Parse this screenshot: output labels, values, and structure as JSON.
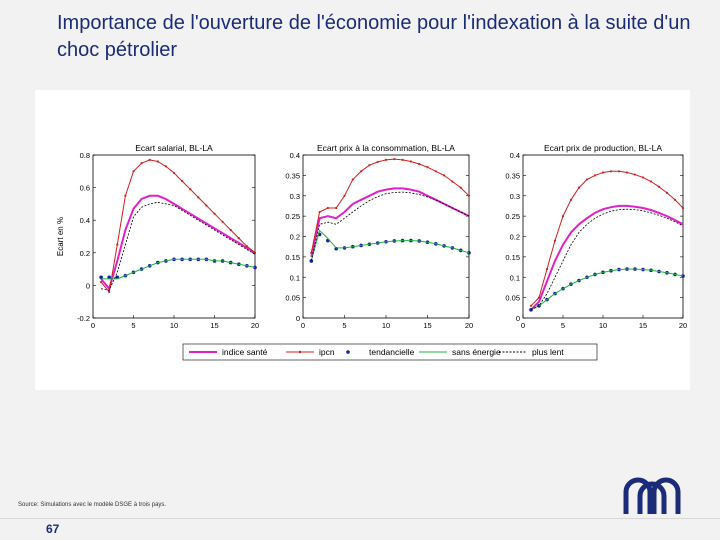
{
  "slide": {
    "title": "Importance de l'ouverture de l'économie pour l'indexation à la suite d'un choc pétrolier",
    "source": "Source: Simulations avec le modèle DSGE à trois pays.",
    "page_number": "67"
  },
  "colors": {
    "indice_sante": "#e020c8",
    "ipcn": "#d02020",
    "tendancielle": "#1020a0",
    "sans_energie": "#20b040",
    "plus_lent": "#000000"
  },
  "chart_data": [
    {
      "type": "line",
      "title": "Ecart salarial, BL-LA",
      "ylabel": "Ecart en %",
      "xlabel": "",
      "xlim": [
        0,
        20
      ],
      "ylim": [
        -0.2,
        0.8
      ],
      "xticks": [
        "0",
        "5",
        "10",
        "15",
        "20"
      ],
      "yticks": [
        "-0.2",
        "0",
        "0.2",
        "0.4",
        "0.6",
        "0.8"
      ],
      "yticks_values": [
        -0.2,
        0,
        0.2,
        0.4,
        0.6,
        0.8
      ],
      "x": [
        1,
        2,
        3,
        4,
        5,
        6,
        7,
        8,
        9,
        10,
        11,
        12,
        13,
        14,
        15,
        16,
        17,
        18,
        19,
        20
      ],
      "series": [
        {
          "name": "indice santé",
          "key": "indice_sante",
          "values": [
            0.04,
            -0.02,
            0.15,
            0.34,
            0.47,
            0.53,
            0.55,
            0.55,
            0.53,
            0.5,
            0.47,
            0.44,
            0.41,
            0.38,
            0.35,
            0.32,
            0.29,
            0.26,
            0.23,
            0.2
          ]
        },
        {
          "name": "ipcn",
          "key": "ipcn",
          "values": [
            0.02,
            -0.04,
            0.25,
            0.55,
            0.7,
            0.75,
            0.77,
            0.76,
            0.73,
            0.69,
            0.64,
            0.59,
            0.54,
            0.49,
            0.44,
            0.39,
            0.34,
            0.29,
            0.24,
            0.2
          ]
        },
        {
          "name": "tendancielle",
          "key": "tendancielle",
          "values": [
            0.05,
            0.05,
            0.05,
            0.06,
            0.08,
            0.1,
            0.12,
            0.14,
            0.15,
            0.16,
            0.16,
            0.16,
            0.16,
            0.16,
            0.15,
            0.15,
            0.14,
            0.13,
            0.12,
            0.11
          ]
        },
        {
          "name": "sans énergie",
          "key": "sans_energie",
          "values": [
            0.04,
            0.04,
            0.04,
            0.06,
            0.08,
            0.1,
            0.12,
            0.14,
            0.15,
            0.16,
            0.16,
            0.16,
            0.16,
            0.16,
            0.15,
            0.15,
            0.14,
            0.13,
            0.12,
            0.11
          ]
        },
        {
          "name": "plus lent",
          "key": "plus_lent",
          "values": [
            -0.02,
            -0.03,
            0.08,
            0.25,
            0.42,
            0.48,
            0.5,
            0.51,
            0.5,
            0.49,
            0.46,
            0.43,
            0.4,
            0.37,
            0.34,
            0.31,
            0.28,
            0.25,
            0.22,
            0.19
          ]
        }
      ]
    },
    {
      "type": "line",
      "title": "Ecart prix à la consommation, BL-LA",
      "ylabel": "",
      "xlabel": "",
      "xlim": [
        0,
        20
      ],
      "ylim": [
        0,
        0.4
      ],
      "xticks": [
        "0",
        "5",
        "10",
        "15",
        "20"
      ],
      "yticks": [
        "0",
        "0.05",
        "0.1",
        "0.15",
        "0.2",
        "0.25",
        "0.3",
        "0.35",
        "0.4"
      ],
      "yticks_values": [
        0,
        0.05,
        0.1,
        0.15,
        0.2,
        0.25,
        0.3,
        0.35,
        0.4
      ],
      "x": [
        1,
        2,
        3,
        4,
        5,
        6,
        7,
        8,
        9,
        10,
        11,
        12,
        13,
        14,
        15,
        16,
        17,
        18,
        19,
        20
      ],
      "series": [
        {
          "name": "indice santé",
          "key": "indice_sante",
          "values": [
            0.15,
            0.245,
            0.25,
            0.245,
            0.26,
            0.28,
            0.29,
            0.3,
            0.31,
            0.315,
            0.318,
            0.318,
            0.315,
            0.31,
            0.3,
            0.29,
            0.28,
            0.27,
            0.26,
            0.25
          ]
        },
        {
          "name": "ipcn",
          "key": "ipcn",
          "values": [
            0.16,
            0.26,
            0.27,
            0.27,
            0.3,
            0.34,
            0.36,
            0.375,
            0.383,
            0.388,
            0.39,
            0.388,
            0.384,
            0.378,
            0.37,
            0.36,
            0.35,
            0.335,
            0.32,
            0.3
          ]
        },
        {
          "name": "tendancielle",
          "key": "tendancielle",
          "values": [
            0.14,
            0.205,
            0.19,
            0.17,
            0.172,
            0.175,
            0.178,
            0.181,
            0.184,
            0.187,
            0.189,
            0.19,
            0.19,
            0.189,
            0.186,
            0.182,
            0.177,
            0.172,
            0.166,
            0.16
          ]
        },
        {
          "name": "sans énergie",
          "key": "sans_energie",
          "values": [
            0.14,
            0.215,
            0.195,
            0.172,
            0.172,
            0.175,
            0.178,
            0.181,
            0.184,
            0.187,
            0.189,
            0.19,
            0.19,
            0.189,
            0.186,
            0.182,
            0.177,
            0.172,
            0.166,
            0.16
          ]
        },
        {
          "name": "plus lent",
          "key": "plus_lent",
          "values": [
            0.14,
            0.23,
            0.235,
            0.23,
            0.245,
            0.26,
            0.275,
            0.288,
            0.298,
            0.305,
            0.308,
            0.309,
            0.307,
            0.303,
            0.297,
            0.29,
            0.28,
            0.27,
            0.26,
            0.25
          ]
        }
      ]
    },
    {
      "type": "line",
      "title": "Ecart prix de production, BL-LA",
      "ylabel": "",
      "xlabel": "",
      "xlim": [
        0,
        20
      ],
      "ylim": [
        0,
        0.4
      ],
      "xticks": [
        "0",
        "5",
        "10",
        "15",
        "20"
      ],
      "yticks": [
        "0",
        "0.05",
        "0.1",
        "0.15",
        "0.2",
        "0.25",
        "0.3",
        "0.35",
        "0.4"
      ],
      "yticks_values": [
        0,
        0.05,
        0.1,
        0.15,
        0.2,
        0.25,
        0.3,
        0.35,
        0.4
      ],
      "x": [
        1,
        2,
        3,
        4,
        5,
        6,
        7,
        8,
        9,
        10,
        11,
        12,
        13,
        14,
        15,
        16,
        17,
        18,
        19,
        20
      ],
      "series": [
        {
          "name": "indice santé",
          "key": "indice_sante",
          "values": [
            0.02,
            0.04,
            0.09,
            0.14,
            0.18,
            0.21,
            0.23,
            0.245,
            0.258,
            0.267,
            0.272,
            0.275,
            0.275,
            0.273,
            0.27,
            0.265,
            0.258,
            0.25,
            0.24,
            0.23
          ]
        },
        {
          "name": "ipcn",
          "key": "ipcn",
          "values": [
            0.03,
            0.05,
            0.12,
            0.19,
            0.25,
            0.29,
            0.32,
            0.34,
            0.35,
            0.357,
            0.36,
            0.36,
            0.357,
            0.352,
            0.345,
            0.335,
            0.322,
            0.307,
            0.29,
            0.27
          ]
        },
        {
          "name": "tendancielle",
          "key": "tendancielle",
          "values": [
            0.02,
            0.03,
            0.045,
            0.06,
            0.072,
            0.083,
            0.092,
            0.1,
            0.107,
            0.112,
            0.116,
            0.119,
            0.12,
            0.12,
            0.119,
            0.117,
            0.114,
            0.111,
            0.107,
            0.103
          ]
        },
        {
          "name": "sans énergie",
          "key": "sans_energie",
          "values": [
            0.02,
            0.03,
            0.045,
            0.06,
            0.072,
            0.083,
            0.092,
            0.1,
            0.107,
            0.112,
            0.116,
            0.119,
            0.12,
            0.12,
            0.119,
            0.117,
            0.114,
            0.111,
            0.107,
            0.103
          ]
        },
        {
          "name": "plus lent",
          "key": "plus_lent",
          "values": [
            0.02,
            0.03,
            0.06,
            0.1,
            0.14,
            0.18,
            0.21,
            0.23,
            0.245,
            0.255,
            0.262,
            0.266,
            0.267,
            0.266,
            0.263,
            0.258,
            0.252,
            0.245,
            0.236,
            0.226
          ]
        }
      ]
    }
  ],
  "legend": [
    {
      "label": "indice santé",
      "key": "indice_sante"
    },
    {
      "label": "ipcn",
      "key": "ipcn"
    },
    {
      "label": "tendancielle",
      "key": "tendancielle"
    },
    {
      "label": "sans énergie",
      "key": "sans_energie"
    },
    {
      "label": "plus lent",
      "key": "plus_lent"
    }
  ]
}
